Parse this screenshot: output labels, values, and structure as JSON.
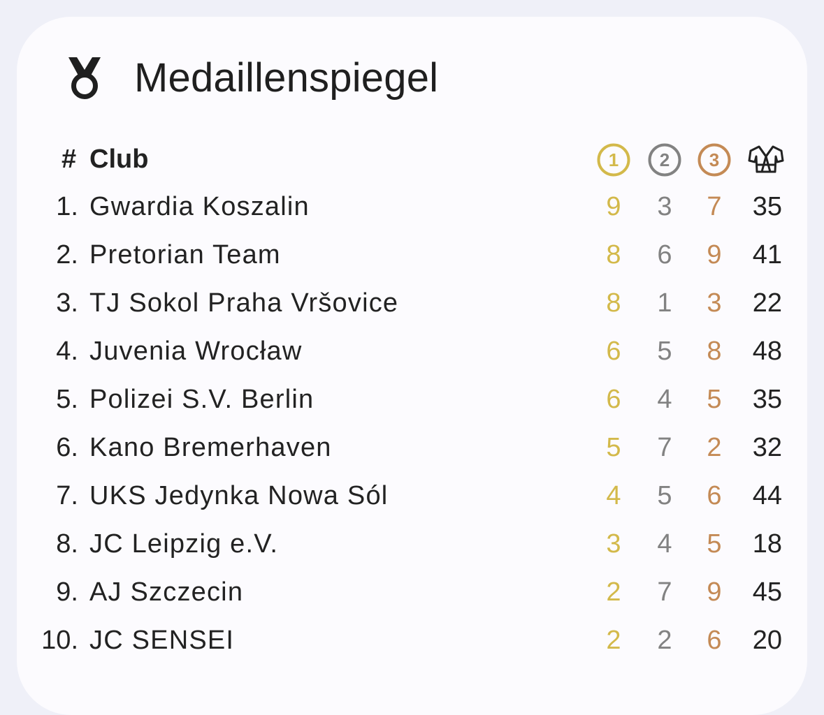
{
  "widget": {
    "title": "Medaillenspiegel",
    "icon": "medal-icon"
  },
  "table": {
    "header": {
      "rank_label": "#",
      "club_label": "Club",
      "gold_label": "1",
      "silver_label": "2",
      "bronze_label": "3",
      "total_icon": "judogi-icon"
    },
    "rows": [
      {
        "rank": "1.",
        "club": "Gwardia Koszalin",
        "gold": "9",
        "silver": "3",
        "bronze": "7",
        "total": "35"
      },
      {
        "rank": "2.",
        "club": "Pretorian Team",
        "gold": "8",
        "silver": "6",
        "bronze": "9",
        "total": "41"
      },
      {
        "rank": "3.",
        "club": "TJ Sokol Praha Vršovice",
        "gold": "8",
        "silver": "1",
        "bronze": "3",
        "total": "22"
      },
      {
        "rank": "4.",
        "club": "Juvenia Wrocław",
        "gold": "6",
        "silver": "5",
        "bronze": "8",
        "total": "48"
      },
      {
        "rank": "5.",
        "club": "Polizei S.V. Berlin",
        "gold": "6",
        "silver": "4",
        "bronze": "5",
        "total": "35"
      },
      {
        "rank": "6.",
        "club": "Kano Bremerhaven",
        "gold": "5",
        "silver": "7",
        "bronze": "2",
        "total": "32"
      },
      {
        "rank": "7.",
        "club": "UKS Jedynka Nowa Sól",
        "gold": "4",
        "silver": "5",
        "bronze": "6",
        "total": "44"
      },
      {
        "rank": "8.",
        "club": "JC Leipzig e.V.",
        "gold": "3",
        "silver": "4",
        "bronze": "5",
        "total": "18"
      },
      {
        "rank": "9.",
        "club": "AJ Szczecin",
        "gold": "2",
        "silver": "7",
        "bronze": "9",
        "total": "45"
      },
      {
        "rank": "10.",
        "club": "JC SENSEI",
        "gold": "2",
        "silver": "2",
        "bronze": "6",
        "total": "20"
      }
    ]
  },
  "colors": {
    "background": "#eff0f8",
    "card": "#fcfbfe",
    "text": "#222222",
    "gold": "#d3b94a",
    "silver": "#828282",
    "bronze": "#c48a55"
  }
}
